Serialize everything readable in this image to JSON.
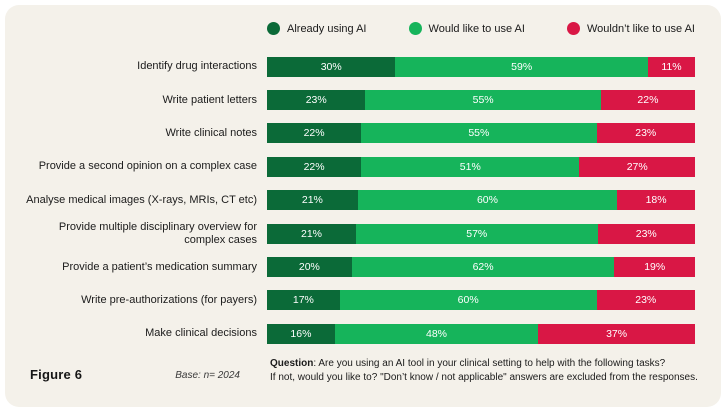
{
  "card": {
    "background": "#f4f1ea"
  },
  "chart_data": {
    "type": "bar",
    "stacked": true,
    "orientation": "horizontal",
    "value_suffix": "%",
    "xlim": [
      0,
      100
    ],
    "grid": false,
    "legend_position": "top",
    "categories": [
      "Identify drug interactions",
      "Write patient letters",
      "Write clinical notes",
      "Provide a second opinion on a complex case",
      "Analyse medical images (X-rays, MRIs, CT etc)",
      "Provide multiple disciplinary overview for complex cases",
      "Provide a patient’s medication summary",
      "Write pre-authorizations (for payers)",
      "Make clinical decisions"
    ],
    "series": [
      {
        "name": "Already using AI",
        "key": "already-using-ai",
        "color": "#0b6a38",
        "values": [
          30,
          23,
          22,
          22,
          21,
          21,
          20,
          17,
          16
        ]
      },
      {
        "name": "Would like to use AI",
        "key": "would-like-ai",
        "color": "#16b45b",
        "values": [
          59,
          55,
          55,
          51,
          60,
          57,
          62,
          60,
          48
        ]
      },
      {
        "name": "Wouldn’t like to use AI",
        "key": "wouldnt-like-ai",
        "color": "#d91745",
        "values": [
          11,
          22,
          23,
          27,
          18,
          23,
          19,
          23,
          37
        ]
      }
    ]
  },
  "footer": {
    "figure_label": "Figure 6",
    "base_note": "Base: n= 2024",
    "question_label": "Question",
    "question_line1": ": Are you using an AI tool in your clinical setting to help with the following tasks?",
    "question_line2": "If not, would you like to? \"Don’t know / not applicable\" answers are excluded from the responses."
  }
}
